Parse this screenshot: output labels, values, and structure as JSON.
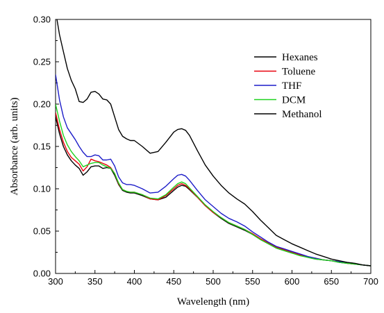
{
  "chart_data": {
    "type": "line",
    "xlabel": "Wavelength (nm)",
    "ylabel": "Absorbance (arb. units)",
    "xlim": [
      300,
      700
    ],
    "ylim": [
      0.0,
      0.3
    ],
    "xticks": [
      "300",
      "350",
      "400",
      "450",
      "500",
      "550",
      "600",
      "650",
      "700"
    ],
    "yticks": [
      "0.00",
      "0.05",
      "0.10",
      "0.15",
      "0.20",
      "0.25",
      "0.30"
    ],
    "grid": false,
    "legend_position": "top-right",
    "series": [
      {
        "name": "Hexanes",
        "color": "#000000",
        "x": [
          300,
          305,
          310,
          315,
          320,
          325,
          330,
          335,
          340,
          345,
          350,
          355,
          360,
          365,
          370,
          375,
          380,
          385,
          390,
          395,
          400,
          410,
          420,
          430,
          440,
          450,
          455,
          460,
          465,
          470,
          480,
          490,
          500,
          510,
          520,
          530,
          540,
          550,
          560,
          570,
          580,
          590,
          600,
          610,
          620,
          630,
          640,
          650,
          660,
          670,
          680,
          690,
          700
        ],
        "y": [
          0.185,
          0.165,
          0.15,
          0.14,
          0.133,
          0.128,
          0.124,
          0.116,
          0.12,
          0.126,
          0.127,
          0.127,
          0.124,
          0.125,
          0.124,
          0.116,
          0.105,
          0.098,
          0.096,
          0.095,
          0.095,
          0.092,
          0.088,
          0.087,
          0.09,
          0.098,
          0.102,
          0.104,
          0.103,
          0.099,
          0.09,
          0.08,
          0.072,
          0.065,
          0.059,
          0.055,
          0.051,
          0.046,
          0.04,
          0.035,
          0.03,
          0.027,
          0.024,
          0.022,
          0.019,
          0.017,
          0.016,
          0.015,
          0.013,
          0.012,
          0.011,
          0.01,
          0.009
        ]
      },
      {
        "name": "Toluene",
        "color": "#e8000b",
        "x": [
          300,
          305,
          310,
          315,
          320,
          325,
          330,
          335,
          340,
          345,
          350,
          355,
          360,
          365,
          370,
          375,
          380,
          385,
          390,
          395,
          400,
          410,
          420,
          430,
          440,
          450,
          455,
          460,
          465,
          470,
          480,
          490,
          500,
          510,
          520,
          530,
          540,
          550,
          560,
          570,
          580,
          590,
          600,
          610,
          620,
          630,
          640,
          650,
          660,
          670,
          680,
          690,
          700
        ],
        "y": [
          0.19,
          0.17,
          0.155,
          0.144,
          0.137,
          0.133,
          0.129,
          0.121,
          0.126,
          0.135,
          0.133,
          0.132,
          0.13,
          0.128,
          0.125,
          0.118,
          0.106,
          0.099,
          0.097,
          0.096,
          0.096,
          0.093,
          0.088,
          0.087,
          0.092,
          0.1,
          0.104,
          0.106,
          0.104,
          0.1,
          0.09,
          0.08,
          0.072,
          0.066,
          0.06,
          0.056,
          0.052,
          0.047,
          0.041,
          0.036,
          0.031,
          0.028,
          0.025,
          0.022,
          0.019,
          0.018,
          0.016,
          0.015,
          0.014,
          0.012,
          0.011,
          0.01,
          0.009
        ]
      },
      {
        "name": "THF",
        "color": "#1c1cc8",
        "x": [
          300,
          305,
          310,
          315,
          320,
          325,
          330,
          335,
          340,
          345,
          350,
          355,
          360,
          365,
          370,
          375,
          380,
          385,
          390,
          395,
          400,
          410,
          420,
          430,
          440,
          450,
          455,
          460,
          465,
          470,
          480,
          490,
          500,
          510,
          520,
          530,
          540,
          550,
          560,
          570,
          580,
          590,
          600,
          610,
          620,
          630,
          640,
          650,
          660,
          670,
          680,
          690,
          700
        ],
        "y": [
          0.235,
          0.205,
          0.185,
          0.172,
          0.165,
          0.158,
          0.15,
          0.143,
          0.138,
          0.138,
          0.14,
          0.139,
          0.134,
          0.134,
          0.135,
          0.127,
          0.114,
          0.107,
          0.105,
          0.105,
          0.104,
          0.1,
          0.095,
          0.096,
          0.103,
          0.112,
          0.116,
          0.117,
          0.115,
          0.11,
          0.098,
          0.087,
          0.079,
          0.071,
          0.065,
          0.061,
          0.056,
          0.049,
          0.043,
          0.037,
          0.032,
          0.029,
          0.026,
          0.023,
          0.02,
          0.018,
          0.016,
          0.015,
          0.014,
          0.013,
          0.011,
          0.01,
          0.009
        ]
      },
      {
        "name": "DCM",
        "color": "#1ed21e",
        "x": [
          300,
          305,
          310,
          315,
          320,
          325,
          330,
          335,
          340,
          345,
          350,
          355,
          360,
          365,
          370,
          375,
          380,
          385,
          390,
          395,
          400,
          410,
          420,
          430,
          440,
          450,
          455,
          460,
          465,
          470,
          480,
          490,
          500,
          510,
          520,
          530,
          540,
          550,
          560,
          570,
          580,
          590,
          600,
          610,
          620,
          630,
          640,
          650,
          660,
          670,
          680,
          690,
          700
        ],
        "y": [
          0.2,
          0.18,
          0.163,
          0.152,
          0.144,
          0.138,
          0.133,
          0.126,
          0.128,
          0.13,
          0.131,
          0.131,
          0.128,
          0.126,
          0.124,
          0.118,
          0.107,
          0.099,
          0.097,
          0.096,
          0.096,
          0.093,
          0.089,
          0.088,
          0.093,
          0.102,
          0.106,
          0.108,
          0.106,
          0.101,
          0.091,
          0.081,
          0.073,
          0.066,
          0.06,
          0.056,
          0.052,
          0.046,
          0.04,
          0.035,
          0.03,
          0.027,
          0.024,
          0.021,
          0.019,
          0.017,
          0.016,
          0.015,
          0.013,
          0.012,
          0.011,
          0.01,
          0.009
        ]
      },
      {
        "name": "Methanol",
        "color": "#000000",
        "x": [
          300,
          305,
          310,
          315,
          320,
          325,
          330,
          335,
          340,
          345,
          350,
          355,
          360,
          365,
          370,
          375,
          380,
          385,
          390,
          395,
          400,
          410,
          420,
          430,
          440,
          450,
          455,
          460,
          465,
          470,
          480,
          490,
          500,
          510,
          520,
          530,
          540,
          550,
          560,
          570,
          580,
          590,
          600,
          610,
          620,
          630,
          640,
          650,
          660,
          670,
          680,
          690,
          700
        ],
        "y": [
          0.31,
          0.282,
          0.262,
          0.242,
          0.228,
          0.218,
          0.203,
          0.202,
          0.206,
          0.214,
          0.215,
          0.212,
          0.206,
          0.205,
          0.2,
          0.185,
          0.17,
          0.162,
          0.159,
          0.157,
          0.157,
          0.15,
          0.142,
          0.144,
          0.155,
          0.167,
          0.17,
          0.171,
          0.169,
          0.163,
          0.145,
          0.128,
          0.115,
          0.104,
          0.095,
          0.088,
          0.082,
          0.073,
          0.063,
          0.054,
          0.045,
          0.04,
          0.035,
          0.031,
          0.027,
          0.023,
          0.02,
          0.017,
          0.015,
          0.013,
          0.012,
          0.01,
          0.009
        ]
      }
    ]
  }
}
